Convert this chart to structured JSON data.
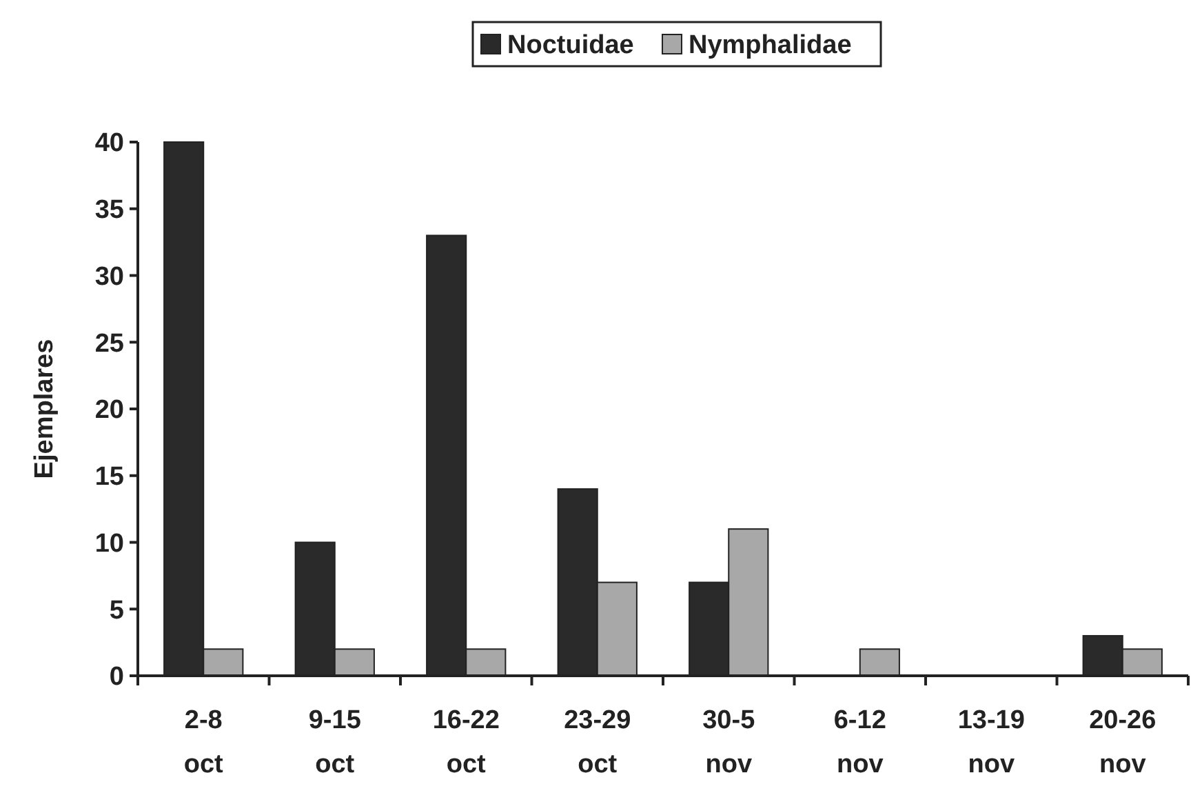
{
  "chart_data": {
    "type": "bar",
    "ylabel": "Ejemplares",
    "categories": [
      "2-8 oct",
      "9-15 oct",
      "16-22 oct",
      "23-29 oct",
      "30-5 nov",
      "6-12 nov",
      "13-19 nov",
      "20-26 nov"
    ],
    "series": [
      {
        "name": "Noctuidae",
        "color": "#2a2a2a",
        "values": [
          40,
          10,
          33,
          14,
          7,
          0,
          0,
          3
        ]
      },
      {
        "name": "Nymphalidae",
        "color": "#a8a8a8",
        "values": [
          2,
          2,
          2,
          7,
          11,
          2,
          0,
          2
        ]
      }
    ],
    "ylim": [
      0,
      40
    ],
    "yticks": [
      0,
      5,
      10,
      15,
      20,
      25,
      30,
      35,
      40
    ],
    "legend": "top",
    "grid": false
  }
}
